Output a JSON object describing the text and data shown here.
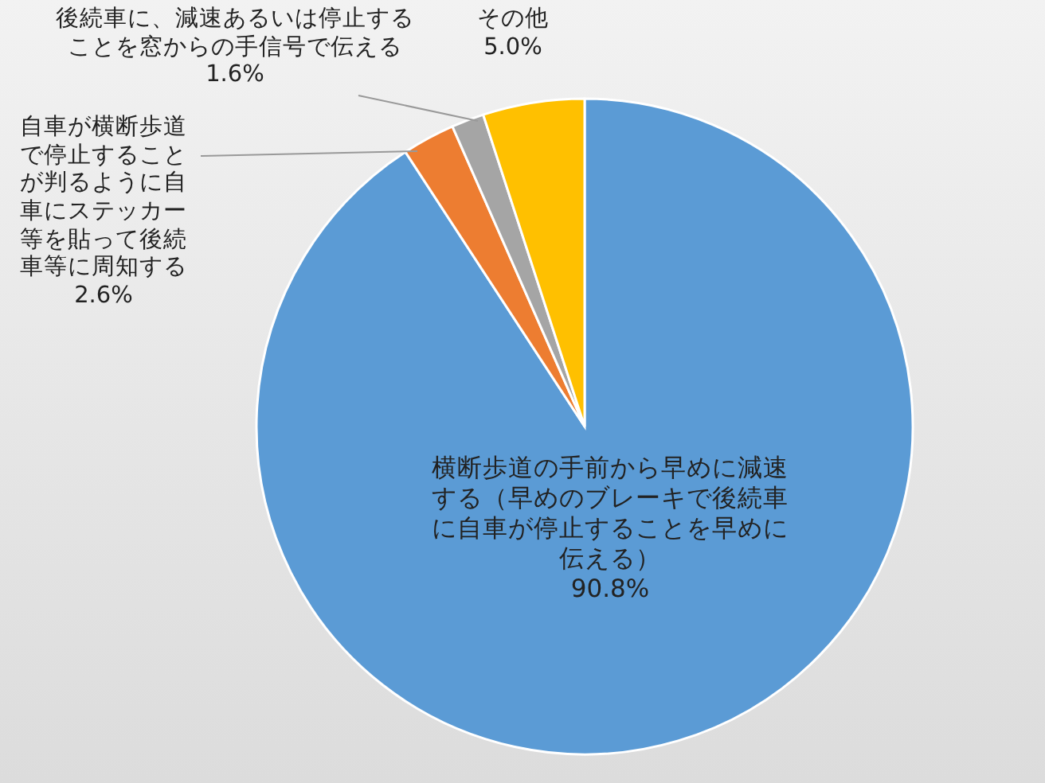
{
  "chart_data": {
    "type": "pie",
    "categories": [
      "横断歩道の手前から早めに減速する（早めのブレーキで後続車に自車が停止することを早めに伝える）",
      "自車が横断歩道で停止することが判るように自車にステッカー等を貼って後続車等に周知する",
      "後続車に、減速あるいは停止することを窓からの手信号で伝える",
      "その他"
    ],
    "values": [
      90.8,
      2.6,
      1.6,
      5.0
    ],
    "value_labels": [
      "90.8%",
      "2.6%",
      "1.6%",
      "5.0%"
    ],
    "colors": [
      "#5b9bd5",
      "#ed7d31",
      "#a5a5a5",
      "#ffc000"
    ]
  }
}
